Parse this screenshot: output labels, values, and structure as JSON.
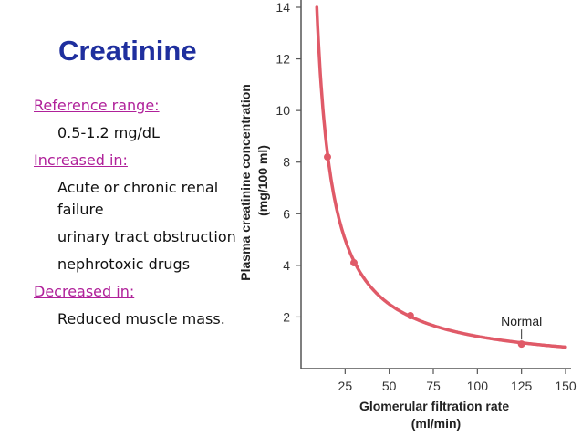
{
  "slide": {
    "title": "Creatinine",
    "reference_label": "Reference range:",
    "reference_value": "0.5-1.2 mg/dL",
    "increased_label": "Increased in:",
    "increased_items": [
      "Acute or chronic renal failure",
      "urinary tract obstruction",
      "nephrotoxic drugs"
    ],
    "decreased_label": "Decreased in:",
    "decreased_items": [
      "Reduced muscle mass."
    ]
  },
  "colors": {
    "title": "#1f2f9e",
    "headers": "#b0219a",
    "curve": "#e05a68",
    "axis": "#555555"
  },
  "chart_data": {
    "type": "line",
    "ylabel": "Plasma creatinine concentration (mg/100 ml)",
    "xlabel": "Glomerular filtration rate (ml/min)",
    "xlim": [
      0,
      150
    ],
    "ylim": [
      0,
      14
    ],
    "x_ticks": [
      25,
      50,
      75,
      100,
      125,
      150
    ],
    "y_ticks": [
      2,
      4,
      6,
      8,
      10,
      12,
      14
    ],
    "series": [
      {
        "x": [
          10,
          12,
          15,
          20,
          25,
          30,
          40,
          50,
          62.5,
          75,
          100,
          125,
          150
        ],
        "values": [
          12.5,
          10.4,
          8.3,
          6.25,
          5,
          4.17,
          3.125,
          2.5,
          2,
          1.67,
          1.25,
          1.0,
          0.83
        ]
      }
    ],
    "markers": [
      {
        "x": 15,
        "y": 8.2
      },
      {
        "x": 30,
        "y": 4.1
      },
      {
        "x": 62,
        "y": 2.05
      },
      {
        "x": 125,
        "y": 0.95,
        "label": "Normal"
      }
    ],
    "grid": false
  }
}
